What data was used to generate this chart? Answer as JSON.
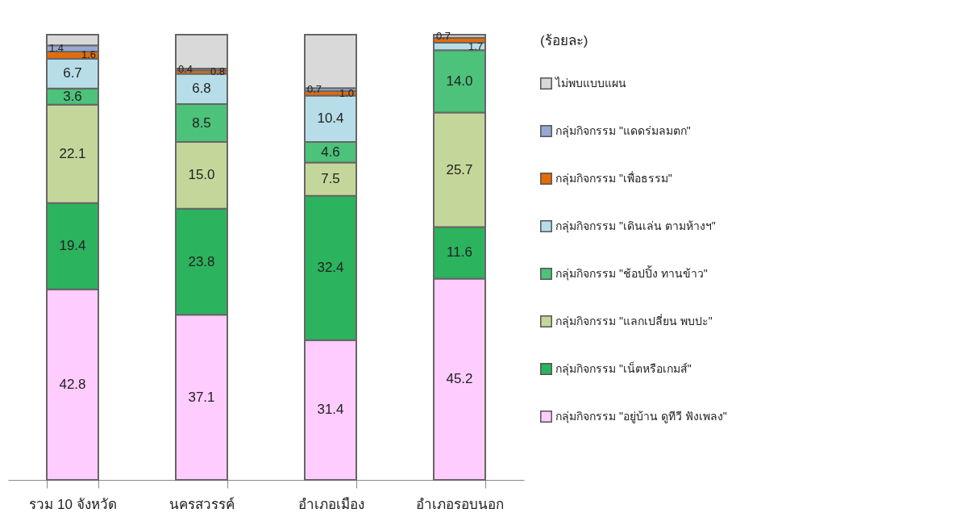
{
  "chart_data": {
    "type": "bar",
    "stacked": true,
    "legend_title": "(ร้อยละ)",
    "legend": "right",
    "categories": [
      "รวม 10 จังหวัด",
      "นครสวรรค์",
      "อำเภอเมือง",
      "อำเภอรอบนอก"
    ],
    "series": [
      {
        "name": "กลุ่มกิจกรรม \"อยู่บ้าน ดูทีวี ฟังเพลง\"",
        "color": "#ffccff",
        "values": [
          42.8,
          37.1,
          31.4,
          45.2
        ],
        "value_labels": [
          "42.8",
          "37.1",
          "31.4",
          "45.2"
        ]
      },
      {
        "name": "กลุ่มกิจกรรม \"เน็ตหรือเกมส์\"",
        "color": "#2bb35e",
        "values": [
          19.4,
          23.8,
          32.4,
          11.6
        ],
        "value_labels": [
          "19.4",
          "23.8",
          "32.4",
          "11.6"
        ]
      },
      {
        "name": "กลุ่มกิจกรรม \"แลกเปลี่ยน พบปะ\"",
        "color": "#c4d79b",
        "values": [
          22.1,
          15.0,
          7.5,
          25.7
        ],
        "value_labels": [
          "22.1",
          "15.0",
          "7.5",
          "25.7"
        ]
      },
      {
        "name": "กลุ่มกิจกรรม \"ช้อปปิ้ง ทานข้าว\"",
        "color": "#4cc27a",
        "values": [
          3.6,
          8.5,
          4.6,
          14.0
        ],
        "value_labels": [
          "3.6",
          "8.5",
          "4.6",
          "14.0"
        ]
      },
      {
        "name": "กลุ่มกิจกรรม \"เดินเล่น ตามห้างฯ\"",
        "color": "#b7dee8",
        "values": [
          6.7,
          6.8,
          10.4,
          1.7
        ],
        "value_labels": [
          "6.7",
          "6.8",
          "10.4",
          "1.7"
        ]
      },
      {
        "name": "กลุ่มกิจกรรม \"เพื่อธรรม\"",
        "color": "#e36c09",
        "values": [
          1.6,
          0.8,
          1.0,
          1.1
        ],
        "value_labels": [
          "1.6",
          "0.8",
          "1.0",
          null
        ]
      },
      {
        "name": "กลุ่มกิจกรรม \"แดดร่มลมตก\"",
        "color": "#95a9d2",
        "values": [
          1.4,
          0.4,
          0.7,
          null
        ],
        "value_labels": [
          "1.4",
          "0.4",
          "0.7",
          null
        ]
      },
      {
        "name": "ไม่พบแบบแผน",
        "color": "#d9d9d9",
        "values": [
          2.4,
          7.6,
          12.0,
          0.7
        ],
        "value_labels": [
          null,
          null,
          null,
          "0.7"
        ]
      }
    ]
  }
}
